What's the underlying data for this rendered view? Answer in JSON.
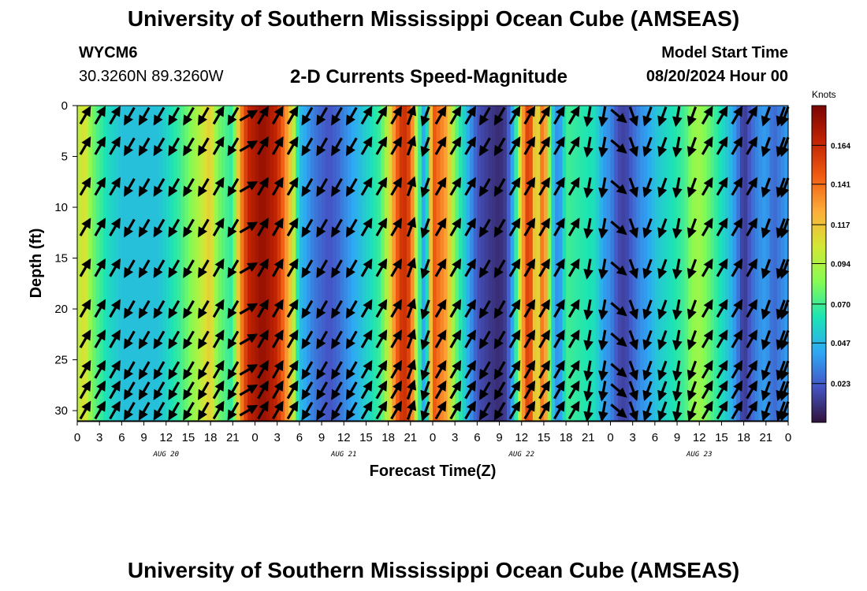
{
  "header": {
    "title": "University of Southern Mississippi Ocean Cube (AMSEAS)",
    "station_id": "WYCM6",
    "coordinates": "30.3260N  89.3260W",
    "subtitle": "2-D Currents Speed-Magnitude",
    "model_start_label": "Model Start Time",
    "model_start_value": "08/20/2024 Hour 00"
  },
  "footer": {
    "title": "University of Southern Mississippi Ocean Cube (AMSEAS)"
  },
  "chart_data": {
    "type": "heatmap",
    "title": "2-D Currents Speed-Magnitude",
    "xlabel": "Forecast Time(Z)",
    "ylabel": "Depth (ft)",
    "x_range_hours": [
      0,
      96
    ],
    "y_range_ft": [
      0,
      31
    ],
    "x_ticks": [
      {
        "h": 0,
        "label": "0"
      },
      {
        "h": 3,
        "label": "3"
      },
      {
        "h": 6,
        "label": "6"
      },
      {
        "h": 9,
        "label": "9"
      },
      {
        "h": 12,
        "label": "12"
      },
      {
        "h": 15,
        "label": "15"
      },
      {
        "h": 18,
        "label": "18"
      },
      {
        "h": 21,
        "label": "21"
      },
      {
        "h": 24,
        "label": "0"
      },
      {
        "h": 27,
        "label": "3"
      },
      {
        "h": 30,
        "label": "6"
      },
      {
        "h": 33,
        "label": "9"
      },
      {
        "h": 36,
        "label": "12"
      },
      {
        "h": 39,
        "label": "15"
      },
      {
        "h": 42,
        "label": "18"
      },
      {
        "h": 45,
        "label": "21"
      },
      {
        "h": 48,
        "label": "0"
      },
      {
        "h": 51,
        "label": "3"
      },
      {
        "h": 54,
        "label": "6"
      },
      {
        "h": 57,
        "label": "9"
      },
      {
        "h": 60,
        "label": "12"
      },
      {
        "h": 63,
        "label": "15"
      },
      {
        "h": 66,
        "label": "18"
      },
      {
        "h": 69,
        "label": "21"
      },
      {
        "h": 72,
        "label": "0"
      },
      {
        "h": 75,
        "label": "3"
      },
      {
        "h": 78,
        "label": "6"
      },
      {
        "h": 81,
        "label": "9"
      },
      {
        "h": 84,
        "label": "12"
      },
      {
        "h": 87,
        "label": "15"
      },
      {
        "h": 90,
        "label": "18"
      },
      {
        "h": 93,
        "label": "21"
      },
      {
        "h": 96,
        "label": "0"
      }
    ],
    "day_labels": [
      {
        "h": 12,
        "label": "AUG 20"
      },
      {
        "h": 36,
        "label": "AUG 21"
      },
      {
        "h": 60,
        "label": "AUG 22"
      },
      {
        "h": 84,
        "label": "AUG 23"
      }
    ],
    "y_ticks": [
      0,
      5,
      10,
      15,
      20,
      25,
      30
    ],
    "colorbar": {
      "unit": "Knots",
      "range": [
        0,
        0.1875
      ],
      "tick_labels": [
        "0.164",
        "0.141",
        "0.117",
        "0.094",
        "0.070",
        "0.047",
        "0.023"
      ],
      "tick_values": [
        0.164,
        0.141,
        0.117,
        0.094,
        0.07,
        0.047,
        0.023
      ],
      "colors": [
        "#30123b",
        "#4454c4",
        "#2ea8f5",
        "#1ce4b4",
        "#86fb52",
        "#d3e735",
        "#fdad39",
        "#f05b12",
        "#c02302",
        "#7a0403"
      ]
    },
    "speed_profile": {
      "description": "Column speed (knots) vs forecast hour",
      "hours": [
        0,
        1,
        2,
        4,
        6,
        8,
        11,
        14,
        16,
        18,
        19,
        21,
        22,
        23,
        25,
        27,
        29,
        30,
        32,
        34,
        35,
        37,
        39,
        41,
        42,
        43,
        44,
        45,
        46,
        47,
        48,
        50,
        51,
        53,
        54,
        55,
        57,
        58,
        59,
        60,
        61,
        62,
        63,
        64,
        65,
        66,
        68,
        70,
        71,
        72,
        73,
        74,
        75,
        76,
        77,
        78,
        80,
        82,
        83,
        84,
        86,
        87,
        88,
        89,
        90,
        91,
        92,
        93,
        94,
        96
      ],
      "speed": [
        0.095,
        0.11,
        0.08,
        0.06,
        0.05,
        0.05,
        0.05,
        0.07,
        0.09,
        0.115,
        0.08,
        0.065,
        0.13,
        0.165,
        0.18,
        0.165,
        0.11,
        0.05,
        0.03,
        0.02,
        0.025,
        0.04,
        0.055,
        0.07,
        0.1,
        0.14,
        0.165,
        0.15,
        0.08,
        0.03,
        0.15,
        0.125,
        0.08,
        0.04,
        0.02,
        0.015,
        0.008,
        0.015,
        0.05,
        0.12,
        0.165,
        0.1,
        0.15,
        0.06,
        0.03,
        0.07,
        0.065,
        0.06,
        0.04,
        0.035,
        0.018,
        0.015,
        0.025,
        0.035,
        0.04,
        0.05,
        0.06,
        0.07,
        0.085,
        0.09,
        0.07,
        0.06,
        0.05,
        0.035,
        0.01,
        0.025,
        0.035,
        0.04,
        0.025,
        0.04
      ]
    },
    "arrows": {
      "description": "Current direction vectors sampled every 2 h at 10 depth levels; angle measured from north (deg, clockwise)",
      "depth_levels_ft": [
        1,
        4,
        8,
        12,
        16,
        20,
        23,
        26,
        28,
        30
      ],
      "hours": [
        0,
        2,
        4,
        6,
        8,
        10,
        12,
        14,
        16,
        18,
        20,
        22,
        24,
        26,
        28,
        30,
        32,
        34,
        36,
        38,
        40,
        42,
        44,
        46,
        48,
        50,
        52,
        54,
        56,
        58,
        60,
        62,
        64,
        66,
        68,
        70,
        72,
        74,
        76,
        78,
        80,
        82,
        84,
        86,
        88,
        90,
        92,
        94,
        96
      ],
      "direction_deg": [
        30,
        30,
        30,
        210,
        210,
        210,
        210,
        210,
        210,
        30,
        210,
        60,
        30,
        30,
        30,
        210,
        210,
        210,
        210,
        30,
        30,
        30,
        20,
        200,
        30,
        30,
        30,
        210,
        210,
        30,
        30,
        30,
        30,
        30,
        190,
        190,
        130,
        160,
        200,
        200,
        190,
        200,
        30,
        30,
        30,
        30,
        200,
        200,
        200
      ]
    },
    "grid": false
  }
}
